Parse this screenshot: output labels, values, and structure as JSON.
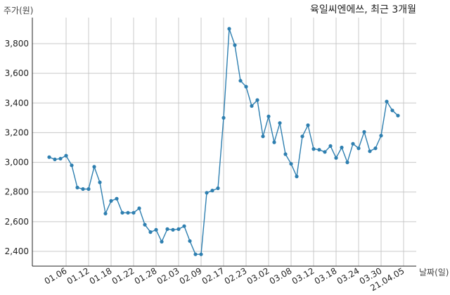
{
  "chart_data": {
    "type": "line",
    "title": "육일씨엔에쓰, 최근 3개월",
    "ylabel": "주가(원)",
    "xlabel": "날짜(일)",
    "ylim": [
      2300,
      4000
    ],
    "yticks": [
      2400,
      2600,
      2800,
      3000,
      3200,
      3400,
      3600,
      3800
    ],
    "ytick_labels": [
      "2,400",
      "2,600",
      "2,800",
      "3,000",
      "3,200",
      "3,400",
      "3,600",
      "3,800"
    ],
    "xtick_labels": [
      "01.06",
      "01.12",
      "01.18",
      "01.22",
      "01.28",
      "02.03",
      "02.09",
      "02.17",
      "02.23",
      "03.02",
      "03.08",
      "03.12",
      "03.18",
      "03.24",
      "03.30",
      "21.04.05"
    ],
    "xtick_index": [
      3,
      7,
      11,
      15,
      19,
      23,
      27,
      31,
      35,
      39,
      43,
      47,
      51,
      55,
      59,
      63
    ],
    "grid": true,
    "line_color": "#2e7fb0",
    "series": [
      {
        "values": [
          3035,
          3020,
          3025,
          3045,
          2980,
          2830,
          2820,
          2820,
          2970,
          2865,
          2655,
          2740,
          2755,
          2660,
          2660,
          2660,
          2690,
          2580,
          2530,
          2545,
          2465,
          2550,
          2545,
          2550,
          2570,
          2470,
          2380,
          2380,
          2795,
          2810,
          2825,
          3300,
          3900,
          3790,
          3550,
          3510,
          3380,
          3420,
          3175,
          3310,
          3135,
          3265,
          3055,
          2990,
          2905,
          3175,
          3250,
          3090,
          3085,
          3070,
          3110,
          3030,
          3100,
          3000,
          3125,
          3095,
          3205,
          3075,
          3095,
          3180,
          3410,
          3350,
          3315
        ]
      }
    ]
  }
}
